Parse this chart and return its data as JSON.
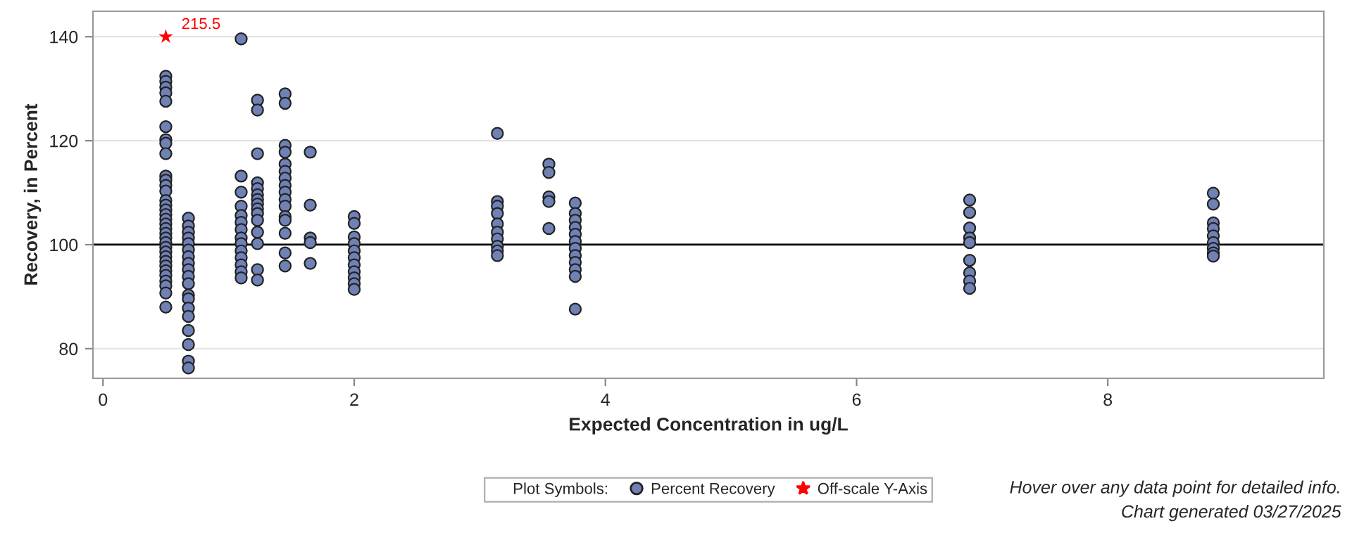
{
  "chart_data": {
    "type": "scatter",
    "xlabel": "Expected Concentration in ug/L",
    "ylabel": "Recovery, in Percent",
    "legend_title": "Plot Symbols:",
    "xlim": [
      -0.08,
      9.72
    ],
    "ylim": [
      74.3,
      144.9
    ],
    "xticks": [
      0,
      2,
      4,
      6,
      8
    ],
    "yticks": [
      80,
      100,
      120,
      140
    ],
    "grid": "y",
    "legend": "bottom",
    "ref_lines": [
      {
        "axis": "y",
        "value": 100,
        "color": "#000000"
      }
    ],
    "series": [
      {
        "name": "Percent Recovery",
        "color": "#6f81b5",
        "marker": "circle",
        "x": [
          0.5,
          0.5,
          0.5,
          0.5,
          0.5,
          0.5,
          0.5,
          0.5,
          0.5,
          0.5,
          0.5,
          0.5,
          0.5,
          0.5,
          0.5,
          0.5,
          0.5,
          0.5,
          0.5,
          0.5,
          0.5,
          0.5,
          0.5,
          0.5,
          0.5,
          0.5,
          0.5,
          0.5,
          0.5,
          0.5,
          0.5,
          0.5,
          0.5,
          0.5,
          0.68,
          0.68,
          0.68,
          0.68,
          0.68,
          0.68,
          0.68,
          0.68,
          0.68,
          0.68,
          0.68,
          0.68,
          0.68,
          0.68,
          0.68,
          0.68,
          0.68,
          0.68,
          0.68,
          1.1,
          1.1,
          1.1,
          1.1,
          1.1,
          1.1,
          1.1,
          1.1,
          1.1,
          1.1,
          1.1,
          1.1,
          1.1,
          1.1,
          1.23,
          1.23,
          1.23,
          1.23,
          1.23,
          1.23,
          1.23,
          1.23,
          1.23,
          1.23,
          1.23,
          1.23,
          1.23,
          1.23,
          1.23,
          1.45,
          1.45,
          1.45,
          1.45,
          1.45,
          1.45,
          1.45,
          1.45,
          1.45,
          1.45,
          1.45,
          1.45,
          1.45,
          1.45,
          1.45,
          1.45,
          1.65,
          1.65,
          1.65,
          1.65,
          1.65,
          2.0,
          2.0,
          2.0,
          2.0,
          2.0,
          2.0,
          2.0,
          2.0,
          2.0,
          2.0,
          2.0,
          3.14,
          3.14,
          3.14,
          3.14,
          3.14,
          3.14,
          3.14,
          3.14,
          3.14,
          3.14,
          3.55,
          3.55,
          3.55,
          3.55,
          3.55,
          3.76,
          3.76,
          3.76,
          3.76,
          3.76,
          3.76,
          3.76,
          3.76,
          3.76,
          3.76,
          3.76,
          3.76,
          6.9,
          6.9,
          6.9,
          6.9,
          6.9,
          6.9,
          6.9,
          6.9,
          6.9,
          8.84,
          8.84,
          8.84,
          8.84,
          8.84,
          8.84,
          8.84,
          8.84,
          8.84
        ],
        "values": [
          132.4,
          131.4,
          130.3,
          129.2,
          127.6,
          122.7,
          120.2,
          119.5,
          117.5,
          113.2,
          112.4,
          111.4,
          110.3,
          108.5,
          107.6,
          106.7,
          105.8,
          104.9,
          104,
          103.1,
          102.2,
          101.3,
          100.4,
          99.5,
          98.6,
          97.7,
          96.8,
          95.9,
          95,
          94.1,
          93,
          92.1,
          90.7,
          88,
          105.1,
          103.6,
          102.4,
          101.3,
          100.2,
          99,
          97.7,
          96.4,
          95.2,
          93.9,
          92.5,
          90.3,
          89.6,
          87.8,
          86.2,
          83.5,
          80.8,
          77.6,
          76.3,
          139.6,
          113.2,
          110.1,
          107.4,
          105.6,
          104.3,
          102.9,
          101.3,
          100.2,
          98.8,
          97.5,
          96.1,
          94.8,
          93.6,
          127.8,
          125.9,
          117.5,
          111.9,
          110.8,
          109.6,
          108.7,
          107.8,
          106.9,
          106,
          104.7,
          102.4,
          100.2,
          95.2,
          93.2,
          129,
          127.2,
          119.1,
          117.8,
          115.5,
          114.1,
          112.8,
          111.4,
          110.1,
          108.7,
          107.4,
          105.4,
          104.7,
          102.2,
          98.4,
          95.9,
          117.8,
          107.6,
          101.3,
          100.4,
          96.4,
          105.4,
          104.1,
          101.5,
          100.2,
          98.8,
          97.5,
          96.1,
          94.8,
          93.6,
          92.5,
          91.4,
          121.4,
          108.3,
          107.4,
          106,
          104,
          102.4,
          101.1,
          99.7,
          98.8,
          97.9,
          115.5,
          113.9,
          109.2,
          108.3,
          103.1,
          108,
          106,
          104.7,
          103.3,
          102,
          100.6,
          99.3,
          97.9,
          96.6,
          95.2,
          93.9,
          87.6,
          108.6,
          106.2,
          103.2,
          101.3,
          100.4,
          97,
          94.6,
          93,
          91.6,
          109.9,
          107.8,
          104.2,
          103.1,
          101.7,
          100.4,
          99.3,
          98.4,
          97.8
        ]
      },
      {
        "name": "Off-scale Y-Axis",
        "color": "#ff0000",
        "marker": "star",
        "x": [
          0.5
        ],
        "values": [
          140
        ]
      }
    ],
    "annotations": [
      {
        "text": "215.5",
        "x": 0.5,
        "y": 140
      },
      "Hover over any data point for detailed info.",
      "Chart generated 03/27/2025"
    ]
  }
}
